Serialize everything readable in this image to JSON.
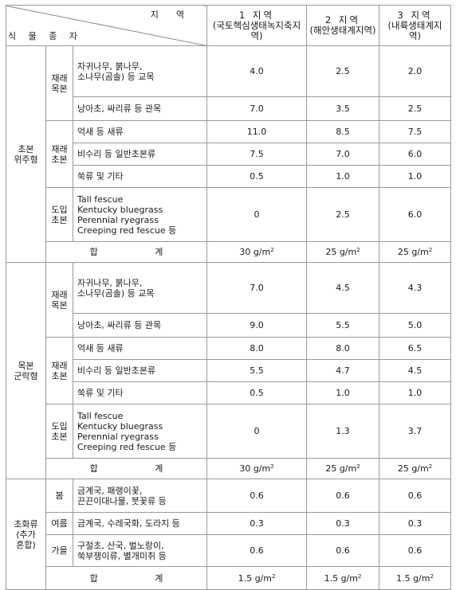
{
  "header": {
    "species_label": "식 물 종 자",
    "region_label": "지역",
    "regions": [
      {
        "title": "1 지역",
        "sub": "(국토핵심생태녹지축지역)"
      },
      {
        "title": "2 지역",
        "sub": "(해안생태계지역)"
      },
      {
        "title": "3 지역",
        "sub": "(내륙생태계지역)"
      }
    ]
  },
  "group_herb": {
    "label": "초본\n위주형",
    "shrub_label": "재래\n목본",
    "native_herb_label": "재래\n초본",
    "intro_label": "도입\n초본",
    "rows": [
      {
        "plant": "자귀나무, 붉나무,\n소나무(곰솔) 등 교목",
        "v": [
          "4.0",
          "2.5",
          "2.0"
        ]
      },
      {
        "plant": "낭아초, 싸리류 등 관목",
        "v": [
          "7.0",
          "3.5",
          "2.5"
        ]
      },
      {
        "plant": "억새 등 새류",
        "v": [
          "11.0",
          "8.5",
          "7.5"
        ]
      },
      {
        "plant": "비수리 등 일반초본류",
        "v": [
          "7.5",
          "7.0",
          "6.0"
        ]
      },
      {
        "plant": "쑥류 및 기타",
        "v": [
          "0.5",
          "1.0",
          "1.0"
        ]
      },
      {
        "plant": "Tall fescue\nKentucky bluegrass\nPerennial ryegrass\nCreeping red fescue 등",
        "v": [
          "0",
          "2.5",
          "6.0"
        ]
      }
    ],
    "total_label": "합 계",
    "totals": [
      "30",
      "25",
      "25"
    ],
    "unit": "g/m",
    "unit_sup": "2"
  },
  "group_woody": {
    "label": "목본\n군락형",
    "shrub_label": "재래\n목본",
    "native_herb_label": "재래\n초본",
    "intro_label": "도입\n초본",
    "rows": [
      {
        "plant": "자귀나무, 붉나무,\n소나무(곰솔) 등 교목",
        "v": [
          "7.0",
          "4.5",
          "4.3"
        ]
      },
      {
        "plant": "낭아초, 싸리류 등 관목",
        "v": [
          "9.0",
          "5.5",
          "5.0"
        ]
      },
      {
        "plant": "억새 등 새류",
        "v": [
          "8.0",
          "8.0",
          "6.5"
        ]
      },
      {
        "plant": "비수리 등 일반초본류",
        "v": [
          "5.5",
          "4.7",
          "4.5"
        ]
      },
      {
        "plant": "쑥류 및 기타",
        "v": [
          "0.5",
          "1.0",
          "1.0"
        ]
      },
      {
        "plant": "Tall fescue\nKentucky bluegrass\nPerennial ryegrass\nCreeping red fescue 등",
        "v": [
          "0",
          "1.3",
          "3.7"
        ]
      }
    ],
    "total_label": "합 계",
    "totals": [
      "30",
      "25",
      "25"
    ],
    "unit": "g/m",
    "unit_sup": "2"
  },
  "group_flower": {
    "label": "초화류\n(추가\n혼합)",
    "rows": [
      {
        "season": "봄",
        "plant": "금계국, 패랭이꽃,\n끈끈이대나물, 붓꽃류 등",
        "v": [
          "0.6",
          "0.6",
          "0.6"
        ]
      },
      {
        "season": "여름",
        "plant": "금계국, 수레국화, 도라지 등",
        "v": [
          "0.3",
          "0.3",
          "0.3"
        ]
      },
      {
        "season": "가을",
        "plant": "구절초, 산국, 벌노랑이,\n쑥부쟁이류, 별개미취 등",
        "v": [
          "0.6",
          "0.6",
          "0.6"
        ]
      }
    ],
    "total_label": "합 계",
    "totals": [
      "1.5",
      "1.5",
      "1.5"
    ],
    "unit": "g/m",
    "unit_sup": "2"
  }
}
